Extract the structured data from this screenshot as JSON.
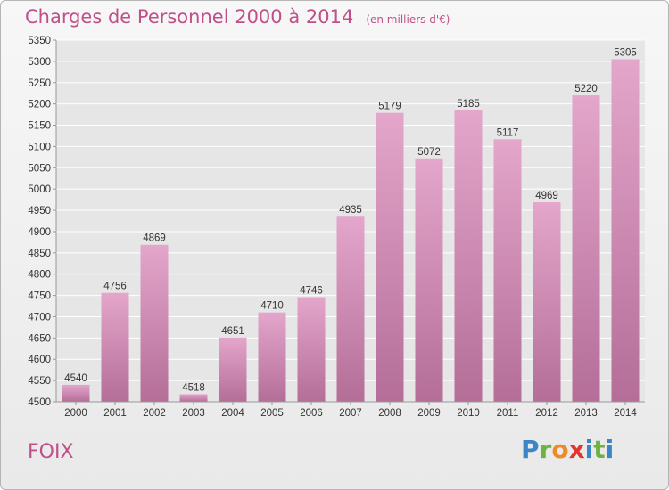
{
  "title": "Charges de Personnel 2000 à 2014",
  "subtitle": "(en milliers d'€)",
  "commune": "FOIX",
  "logo": "Proxiti",
  "colors": {
    "bar_top": "#e4a6cb",
    "bar_bottom": "#b46e98",
    "text_accent": "#c0508a",
    "grid": "#ffffff"
  },
  "chart_data": {
    "type": "bar",
    "categories": [
      "2000",
      "2001",
      "2002",
      "2003",
      "2004",
      "2005",
      "2006",
      "2007",
      "2008",
      "2009",
      "2010",
      "2011",
      "2012",
      "2013",
      "2014"
    ],
    "values": [
      4540,
      4756,
      4869,
      4518,
      4651,
      4710,
      4746,
      4935,
      5179,
      5072,
      5185,
      5117,
      4969,
      5220,
      5305
    ],
    "ylim": [
      4500,
      5350
    ],
    "yticks": [
      4500,
      4550,
      4600,
      4650,
      4700,
      4750,
      4800,
      4850,
      4900,
      4950,
      5000,
      5050,
      5100,
      5150,
      5200,
      5250,
      5300,
      5350
    ],
    "grid": true,
    "data_labels": true
  }
}
